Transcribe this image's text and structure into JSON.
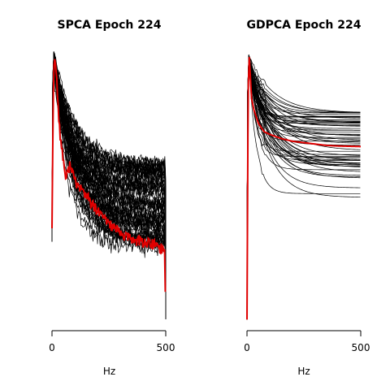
{
  "chart_data": [
    {
      "type": "line",
      "title": "SPCA Epoch 224",
      "xlabel": "Hz",
      "ylabel": "",
      "xlim": [
        0,
        500
      ],
      "ylim": [
        0,
        1
      ],
      "xticks": [
        0,
        500
      ],
      "yaxis_drawn": false,
      "grid": false,
      "legend": "none",
      "colors": {
        "curves": "#000000",
        "highlight": "#e00000"
      },
      "n_curves": 60,
      "shape": "noisy spectra: vertical rise at 0 Hz to a peak at ~10 Hz, decaying to a plateau near 500 Hz, then a drop at 500 Hz",
      "highlight_series": {
        "x": [
          0,
          5,
          10,
          20,
          30,
          40,
          50,
          60,
          70,
          80,
          100,
          120,
          150,
          180,
          200,
          250,
          300,
          350,
          400,
          450,
          495,
          500
        ],
        "values": [
          0.35,
          0.8,
          0.99,
          0.9,
          0.75,
          0.65,
          0.6,
          0.53,
          0.55,
          0.59,
          0.52,
          0.5,
          0.47,
          0.43,
          0.41,
          0.37,
          0.33,
          0.31,
          0.3,
          0.29,
          0.27,
          0.02
        ]
      },
      "curve_band_near_500": [
        0.28,
        0.6
      ]
    },
    {
      "type": "line",
      "title": "GDPCA Epoch 224",
      "xlabel": "Hz",
      "ylabel": "",
      "xlim": [
        0,
        500
      ],
      "ylim": [
        0,
        1
      ],
      "xticks": [
        0,
        500
      ],
      "yaxis_drawn": false,
      "grid": false,
      "legend": "none",
      "colors": {
        "curves": "#000000",
        "highlight": "#e00000"
      },
      "n_curves": 60,
      "shape": "smooth spectra: vertical rise at 0 Hz to a peak at ~10 Hz, exponential decay to a plateau",
      "highlight_series": {
        "x": [
          0,
          5,
          10,
          20,
          30,
          50,
          75,
          100,
          150,
          200,
          250,
          300,
          350,
          400,
          450,
          500
        ],
        "values": [
          0.02,
          0.85,
          0.97,
          0.82,
          0.78,
          0.73,
          0.7,
          0.69,
          0.675,
          0.665,
          0.66,
          0.655,
          0.65,
          0.648,
          0.647,
          0.646
        ]
      },
      "curve_band_near_500": [
        0.45,
        0.77
      ]
    }
  ]
}
